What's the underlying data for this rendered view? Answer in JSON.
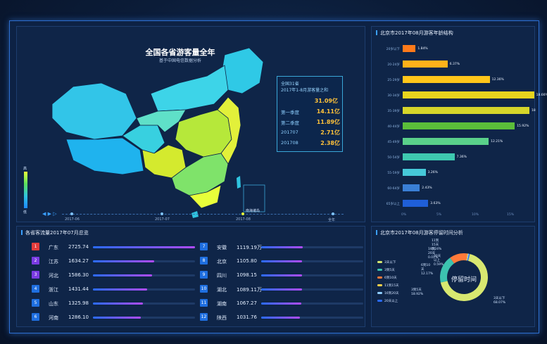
{
  "map_panel": {
    "title": "全国各省游客量全年",
    "subtitle": "基于中国电信数据分析",
    "summary": {
      "line1": "全国31省",
      "line2": "2017年1-8月游客量之和",
      "total": "31.09亿",
      "rows": [
        {
          "label": "第一季度",
          "value": "14.11亿"
        },
        {
          "label": "第二季度",
          "value": "11.89亿"
        },
        {
          "label": "201707",
          "value": "2.71亿"
        },
        {
          "label": "201708",
          "value": "2.38亿"
        }
      ]
    },
    "legend_high": "高",
    "legend_low": "低",
    "timeline": [
      "2017-06",
      "2017-07",
      "2017-08",
      "全年"
    ],
    "inset_label": "南海诸岛",
    "colors": {
      "high": "#e8ff3a",
      "mid": "#5be05b",
      "low": "#1d88ff"
    }
  },
  "age_panel": {
    "title": "北京市2017年08月游客年龄结构",
    "rows": [
      {
        "label": "20岁以下",
        "value": 1.84,
        "text": "1.84%",
        "color": "#ff7a1a"
      },
      {
        "label": "20-24岁",
        "value": 6.37,
        "text": "6.37%",
        "color": "#ffb21a"
      },
      {
        "label": "25-29岁",
        "value": 12.36,
        "text": "12.36%",
        "color": "#ffc61a"
      },
      {
        "label": "30-34岁",
        "value": 18.66,
        "text": "18.66%",
        "color": "#e8d41e"
      },
      {
        "label": "35-39岁",
        "value": 18,
        "text": "18",
        "color": "#d6d62a"
      },
      {
        "label": "40-44岁",
        "value": 15.92,
        "text": "15.92%",
        "color": "#5bbd3a"
      },
      {
        "label": "45-49岁",
        "value": 12.21,
        "text": "12.21%",
        "color": "#5ad18a"
      },
      {
        "label": "50-54岁",
        "value": 7.36,
        "text": "7.36%",
        "color": "#3ec9b0"
      },
      {
        "label": "55-59岁",
        "value": 3.26,
        "text": "3.26%",
        "color": "#46c8d8"
      },
      {
        "label": "60-64岁",
        "value": 2.43,
        "text": "2.43%",
        "color": "#3a7fd6"
      },
      {
        "label": "65岁以上",
        "value": 3.63,
        "text": "3.63%",
        "color": "#1f5fd8"
      }
    ],
    "axis": [
      "0%",
      "5%",
      "10%",
      "15%"
    ]
  },
  "flow_panel": {
    "title": "各省客流量2017年07月总览",
    "left": [
      {
        "rank": "1",
        "name": "广东",
        "value": "2725.74",
        "ratio": 1.0,
        "rank_color": "#e23b3b"
      },
      {
        "rank": "2",
        "name": "江苏",
        "value": "1634.27",
        "ratio": 0.6,
        "rank_color": "#7a3be2"
      },
      {
        "rank": "3",
        "name": "河北",
        "value": "1586.30",
        "ratio": 0.58,
        "rank_color": "#7a3be2"
      },
      {
        "rank": "4",
        "name": "浙江",
        "value": "1431.44",
        "ratio": 0.53,
        "rank_color": "#1f6fe0"
      },
      {
        "rank": "5",
        "name": "山东",
        "value": "1325.98",
        "ratio": 0.49,
        "rank_color": "#1f6fe0"
      },
      {
        "rank": "6",
        "name": "河南",
        "value": "1286.10",
        "ratio": 0.47,
        "rank_color": "#1f6fe0"
      }
    ],
    "right": [
      {
        "rank": "7",
        "name": "安徽",
        "value": "1119.19万",
        "ratio": 0.41,
        "rank_color": "#1f6fe0"
      },
      {
        "rank": "8",
        "name": "北京",
        "value": "1105.80",
        "ratio": 0.4,
        "rank_color": "#1f6fe0"
      },
      {
        "rank": "9",
        "name": "四川",
        "value": "1098.15",
        "ratio": 0.4,
        "rank_color": "#1f6fe0"
      },
      {
        "rank": "10",
        "name": "湖北",
        "value": "1089.11万",
        "ratio": 0.4,
        "rank_color": "#1f6fe0"
      },
      {
        "rank": "11",
        "name": "湖南",
        "value": "1067.27",
        "ratio": 0.39,
        "rank_color": "#1f6fe0"
      },
      {
        "rank": "12",
        "name": "陕西",
        "value": "1031.76",
        "ratio": 0.38,
        "rank_color": "#1f6fe0"
      }
    ]
  },
  "stay_panel": {
    "title": "北京市2017年08月游客停留时间分析",
    "center_label": "停留时间",
    "legend": [
      {
        "label": "3天以下",
        "color": "#d8e870"
      },
      {
        "label": "3到5天",
        "color": "#3cc3b0"
      },
      {
        "label": "6到10天",
        "color": "#ff7a3a"
      },
      {
        "label": "11到15天",
        "color": "#ffd24a"
      },
      {
        "label": "16到20天",
        "color": "#8fd0ff"
      },
      {
        "label": "20天以上",
        "color": "#2a6bff"
      }
    ],
    "slices": [
      {
        "label": "3天以下",
        "value": 68.07,
        "text": "68.07%",
        "color": "#d8e870"
      },
      {
        "label": "3到5天",
        "value": 18.92,
        "text": "18.92%",
        "color": "#3cc3b0"
      },
      {
        "label": "6到10天",
        "value": 12.17,
        "text": "12.17%",
        "color": "#ff7a3a"
      },
      {
        "label": "11到15天",
        "value": 0.24,
        "text": "0.24%",
        "color": "#ffd24a"
      },
      {
        "label": "16到20天",
        "value": 0.01,
        "text": "0.01%",
        "color": "#8fd0ff"
      },
      {
        "label": "20天以上",
        "value": 0.59,
        "text": "0.59%",
        "color": "#2a6bff"
      }
    ]
  }
}
